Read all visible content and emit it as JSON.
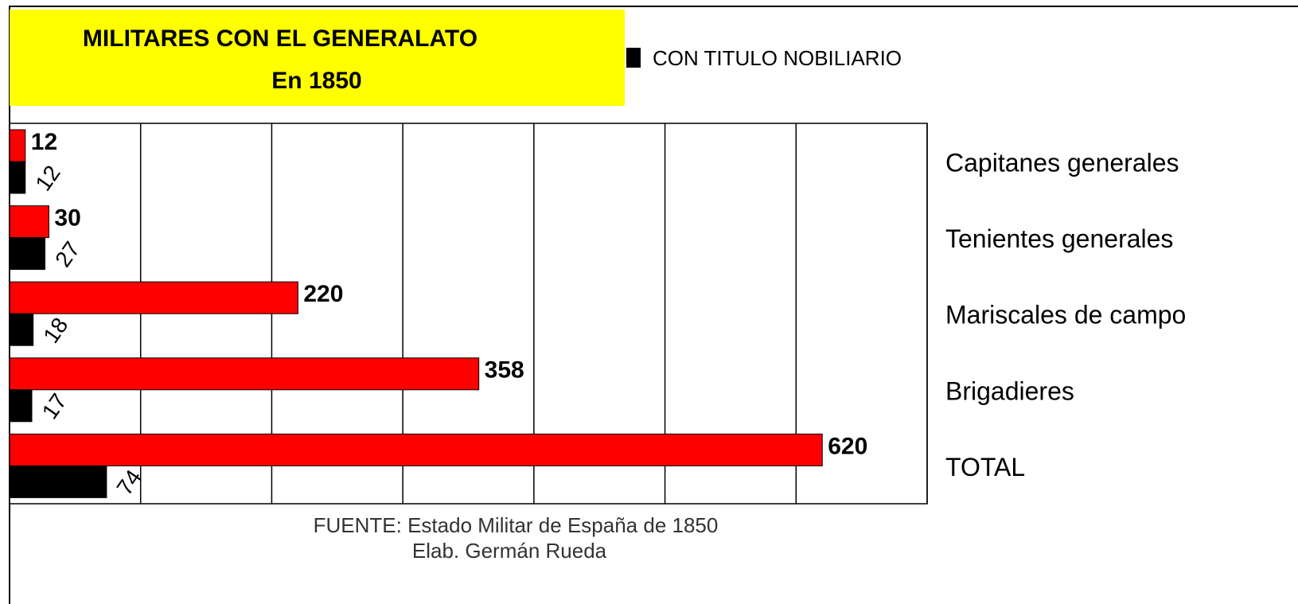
{
  "chart_data": {
    "type": "hbar",
    "title": "MILITARES CON EL GENERALATO",
    "subtitle": "En 1850",
    "categories": [
      "Capitanes generales",
      "Tenientes generales",
      "Mariscales de campo",
      "Brigadieres",
      "TOTAL"
    ],
    "series": [
      {
        "color": "#ff0000",
        "values": [
          12,
          30,
          220,
          358,
          620
        ]
      },
      {
        "name": "CON TITULO NOBILIARIO",
        "color": "#000000",
        "values": [
          12,
          27,
          18,
          17,
          74
        ]
      }
    ],
    "xlim": [
      0,
      700
    ],
    "xticks": [
      0,
      100,
      200,
      300,
      400,
      500,
      600,
      700
    ],
    "grid": true,
    "legend": "top",
    "source": [
      "FUENTE: Estado Militar de España de 1850",
      "Elab. Germán Rueda"
    ]
  }
}
